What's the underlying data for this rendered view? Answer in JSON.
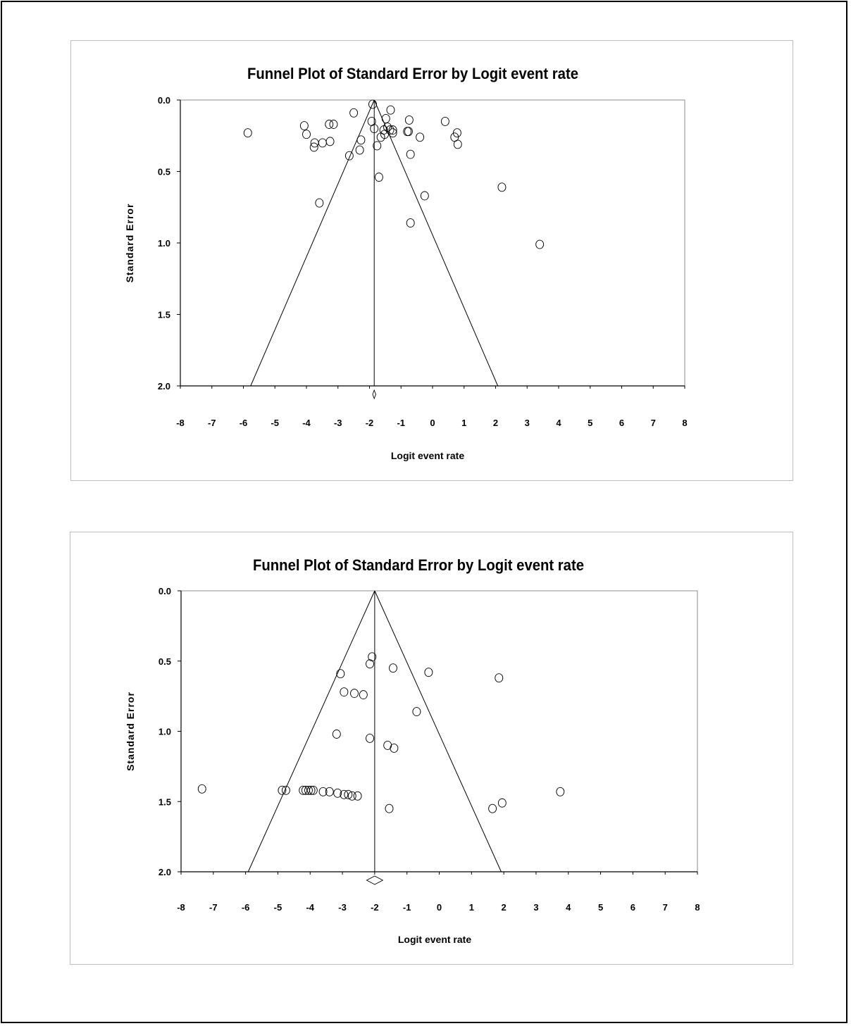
{
  "chart_data": [
    {
      "type": "scatter",
      "title": "Funnel Plot of Standard Error by Logit event rate",
      "xlabel": "Logit event rate",
      "ylabel": "Standard Error",
      "xlim": [
        -8,
        8
      ],
      "ylim": [
        0,
        2
      ],
      "y_inverted": true,
      "x_ticks": [
        -8,
        -7,
        -6,
        -5,
        -4,
        -3,
        -2,
        -1,
        0,
        1,
        2,
        3,
        4,
        5,
        6,
        7,
        8
      ],
      "x_tick_labels": [
        "-8",
        "-7",
        "-6",
        "-5",
        "-4",
        "-3",
        "-2",
        "-1",
        "0",
        "1",
        "2",
        "3",
        "4",
        "5",
        "6",
        "7",
        "8"
      ],
      "y_ticks": [
        0,
        0.5,
        1,
        1.5,
        2
      ],
      "y_tick_labels": [
        "0.0",
        "0.5",
        "1.0",
        "1.5",
        "2.0"
      ],
      "pooled_estimate": -1.85,
      "diamond_halfwidth": 0.05,
      "points": [
        [
          -5.86,
          0.23
        ],
        [
          -4.07,
          0.18
        ],
        [
          -4.0,
          0.24
        ],
        [
          -3.76,
          0.33
        ],
        [
          -3.74,
          0.3
        ],
        [
          -3.49,
          0.3
        ],
        [
          -3.28,
          0.17
        ],
        [
          -3.14,
          0.17
        ],
        [
          -3.25,
          0.29
        ],
        [
          -3.59,
          0.72
        ],
        [
          -2.64,
          0.39
        ],
        [
          -2.5,
          0.09
        ],
        [
          -2.27,
          0.28
        ],
        [
          -2.31,
          0.35
        ],
        [
          -1.9,
          0.03
        ],
        [
          -1.93,
          0.15
        ],
        [
          -1.85,
          0.2
        ],
        [
          -1.76,
          0.32
        ],
        [
          -1.64,
          0.26
        ],
        [
          -1.55,
          0.21
        ],
        [
          -1.52,
          0.24
        ],
        [
          -1.48,
          0.13
        ],
        [
          -1.43,
          0.19
        ],
        [
          -1.35,
          0.21
        ],
        [
          -1.33,
          0.07
        ],
        [
          -1.26,
          0.21
        ],
        [
          -1.26,
          0.23
        ],
        [
          -0.8,
          0.22
        ],
        [
          -0.74,
          0.14
        ],
        [
          -0.76,
          0.22
        ],
        [
          -0.7,
          0.38
        ],
        [
          -1.7,
          0.54
        ],
        [
          -0.4,
          0.26
        ],
        [
          -0.25,
          0.67
        ],
        [
          -0.7,
          0.86
        ],
        [
          0.4,
          0.15
        ],
        [
          0.7,
          0.26
        ],
        [
          0.78,
          0.23
        ],
        [
          0.8,
          0.31
        ],
        [
          2.2,
          0.61
        ],
        [
          3.4,
          1.01
        ]
      ]
    },
    {
      "type": "scatter",
      "title": "Funnel Plot of Standard Error by Logit event rate",
      "xlabel": "Logit event rate",
      "ylabel": "Standard Error",
      "xlim": [
        -8,
        8
      ],
      "ylim": [
        0,
        2
      ],
      "y_inverted": true,
      "x_ticks": [
        -8,
        -7,
        -6,
        -5,
        -4,
        -3,
        -2,
        -1,
        0,
        1,
        2,
        3,
        4,
        5,
        6,
        7,
        8
      ],
      "x_tick_labels": [
        "-8",
        "-7",
        "-6",
        "-5",
        "-4",
        "-3",
        "-2",
        "-1",
        "0",
        "1",
        "2",
        "3",
        "4",
        "5",
        "6",
        "7",
        "8"
      ],
      "y_ticks": [
        0,
        0.5,
        1,
        1.5,
        2
      ],
      "y_tick_labels": [
        "0.0",
        "0.5",
        "1.0",
        "1.5",
        "2.0"
      ],
      "pooled_estimate": -2.0,
      "diamond_halfwidth": 0.25,
      "points": [
        [
          -7.35,
          1.41
        ],
        [
          -4.87,
          1.42
        ],
        [
          -4.75,
          1.42
        ],
        [
          -4.22,
          1.42
        ],
        [
          -4.14,
          1.42
        ],
        [
          -4.05,
          1.42
        ],
        [
          -3.97,
          1.42
        ],
        [
          -3.9,
          1.42
        ],
        [
          -3.6,
          1.43
        ],
        [
          -3.4,
          1.43
        ],
        [
          -3.15,
          1.44
        ],
        [
          -2.95,
          1.45
        ],
        [
          -2.82,
          1.45
        ],
        [
          -2.7,
          1.46
        ],
        [
          -2.53,
          1.46
        ],
        [
          -3.18,
          1.02
        ],
        [
          -3.06,
          0.59
        ],
        [
          -2.95,
          0.72
        ],
        [
          -2.63,
          0.73
        ],
        [
          -2.35,
          0.74
        ],
        [
          -2.15,
          0.52
        ],
        [
          -2.08,
          0.47
        ],
        [
          -2.15,
          1.05
        ],
        [
          -1.6,
          1.1
        ],
        [
          -1.4,
          1.12
        ],
        [
          -1.55,
          1.55
        ],
        [
          -1.43,
          0.55
        ],
        [
          -0.7,
          0.86
        ],
        [
          -0.33,
          0.58
        ],
        [
          1.85,
          0.62
        ],
        [
          1.65,
          1.55
        ],
        [
          1.95,
          1.51
        ],
        [
          3.75,
          1.43
        ]
      ]
    }
  ]
}
